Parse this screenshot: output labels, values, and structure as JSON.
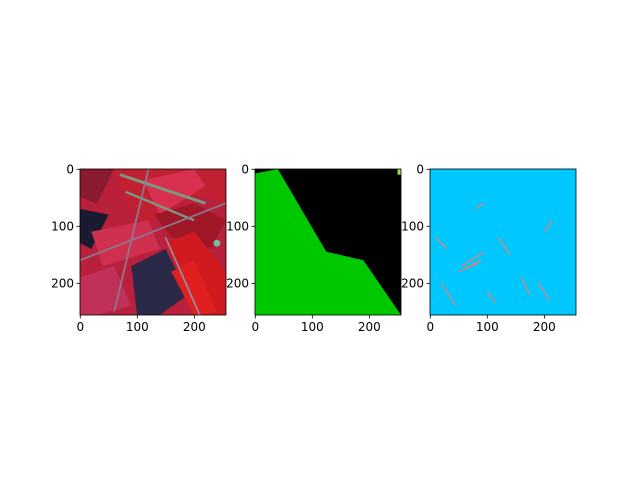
{
  "chart_data": [
    {
      "type": "image",
      "xlim": [
        -0.5,
        255.5
      ],
      "ylim": [
        255.5,
        -0.5
      ],
      "xticks": [
        0,
        100,
        200
      ],
      "yticks": [
        0,
        100,
        200
      ]
    },
    {
      "type": "image",
      "xlim": [
        -0.5,
        255.5
      ],
      "ylim": [
        255.5,
        -0.5
      ],
      "xticks": [
        0,
        100,
        200
      ],
      "yticks": [
        0,
        100,
        200
      ]
    },
    {
      "type": "image",
      "xlim": [
        -0.5,
        255.5
      ],
      "ylim": [
        255.5,
        -0.5
      ],
      "xticks": [
        0,
        100,
        200
      ],
      "yticks": [
        0,
        100,
        200
      ]
    }
  ]
}
